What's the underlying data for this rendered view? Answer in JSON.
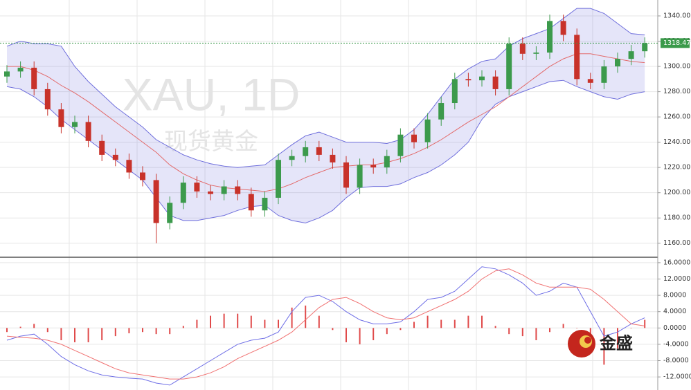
{
  "chart_data": [
    {
      "type": "candlestick",
      "watermark": "XAU, 1D",
      "watermark_subtitle": "现货黄金",
      "up_color": "#3c9a4c",
      "down_color": "#c8322a",
      "band_color": "#6e6edc",
      "middle_color": "#e36a6a",
      "open": [
        1292,
        1296,
        1299,
        1282,
        1266,
        1252,
        1256,
        1241,
        1230,
        1226,
        1216,
        1210,
        1176,
        1192,
        1208,
        1201,
        1199,
        1205,
        1199,
        1186,
        1196,
        1226,
        1229,
        1236,
        1230,
        1224,
        1204,
        1222,
        1220,
        1229,
        1246,
        1240,
        1258,
        1271,
        1290,
        1289,
        1292,
        1282,
        1318,
        1310,
        1311,
        1336,
        1325,
        1290,
        1287,
        1300,
        1306,
        1312
      ],
      "high": [
        1301,
        1304,
        1304,
        1287,
        1271,
        1261,
        1261,
        1246,
        1235,
        1231,
        1221,
        1215,
        1197,
        1213,
        1213,
        1206,
        1210,
        1210,
        1204,
        1201,
        1231,
        1234,
        1241,
        1241,
        1235,
        1229,
        1227,
        1227,
        1234,
        1251,
        1251,
        1263,
        1276,
        1295,
        1295,
        1297,
        1297,
        1323,
        1323,
        1316,
        1341,
        1341,
        1330,
        1295,
        1305,
        1311,
        1317,
        1323
      ],
      "low": [
        1287,
        1291,
        1277,
        1261,
        1247,
        1247,
        1236,
        1225,
        1221,
        1211,
        1205,
        1160,
        1171,
        1187,
        1196,
        1194,
        1194,
        1194,
        1181,
        1181,
        1191,
        1221,
        1224,
        1225,
        1219,
        1199,
        1199,
        1215,
        1215,
        1224,
        1235,
        1235,
        1253,
        1266,
        1284,
        1284,
        1277,
        1277,
        1305,
        1305,
        1306,
        1320,
        1285,
        1282,
        1282,
        1295,
        1301,
        1307
      ],
      "close": [
        1296,
        1299,
        1282,
        1266,
        1252,
        1256,
        1241,
        1230,
        1226,
        1216,
        1210,
        1176,
        1192,
        1208,
        1201,
        1199,
        1205,
        1199,
        1186,
        1196,
        1226,
        1229,
        1236,
        1230,
        1224,
        1204,
        1222,
        1220,
        1229,
        1246,
        1240,
        1258,
        1271,
        1290,
        1289,
        1292,
        1282,
        1318,
        1310,
        1311,
        1336,
        1325,
        1290,
        1287,
        1300,
        1306,
        1312,
        1318.47
      ],
      "upper": [
        1316,
        1320,
        1318,
        1318,
        1316,
        1300,
        1288,
        1278,
        1268,
        1260,
        1252,
        1242,
        1236,
        1230,
        1226,
        1223,
        1221,
        1220,
        1221,
        1222,
        1230,
        1238,
        1245,
        1248,
        1244,
        1240,
        1240,
        1240,
        1239,
        1242,
        1250,
        1262,
        1276,
        1290,
        1298,
        1304,
        1306,
        1316,
        1322,
        1326,
        1330,
        1338,
        1346,
        1346,
        1342,
        1334,
        1326,
        1325
      ],
      "middle": [
        1300,
        1300,
        1297,
        1292,
        1285,
        1279,
        1272,
        1264,
        1256,
        1248,
        1240,
        1232,
        1222,
        1215,
        1210,
        1206,
        1204,
        1203,
        1202,
        1201,
        1203,
        1207,
        1212,
        1216,
        1220,
        1221,
        1222,
        1222,
        1224,
        1227,
        1231,
        1236,
        1242,
        1249,
        1256,
        1262,
        1268,
        1276,
        1284,
        1292,
        1300,
        1306,
        1310,
        1310,
        1308,
        1306,
        1304,
        1303
      ],
      "lower": [
        1284,
        1282,
        1276,
        1268,
        1258,
        1250,
        1242,
        1234,
        1226,
        1218,
        1210,
        1196,
        1182,
        1178,
        1178,
        1180,
        1182,
        1186,
        1189,
        1190,
        1182,
        1178,
        1176,
        1180,
        1186,
        1196,
        1204,
        1205,
        1205,
        1207,
        1212,
        1216,
        1222,
        1230,
        1240,
        1258,
        1270,
        1276,
        1280,
        1284,
        1288,
        1289,
        1284,
        1280,
        1276,
        1274,
        1278,
        1280
      ],
      "last_price": 1318.47,
      "ylim": [
        1150,
        1352.6
      ],
      "yticks": [
        {
          "value": 1160,
          "label": "1160.00"
        },
        {
          "value": 1180,
          "label": "1180.00"
        },
        {
          "value": 1200,
          "label": "1200.00"
        },
        {
          "value": 1220,
          "label": "1220.00"
        },
        {
          "value": 1240,
          "label": "1240.00"
        },
        {
          "value": 1260,
          "label": "1260.00"
        },
        {
          "value": 1280,
          "label": "1280.00"
        },
        {
          "value": 1300,
          "label": "1300.00"
        },
        {
          "value": 1320,
          "label": "1320.00"
        },
        {
          "value": 1340,
          "label": "1340.00"
        }
      ],
      "grid": true
    },
    {
      "type": "macd",
      "logo": "金盛",
      "macd_color": "#6e6ee6",
      "signal_color": "#f07070",
      "hist_color": "#e04a4a",
      "macd": [
        -3,
        -2,
        -1.5,
        -4,
        -7,
        -9,
        -10.5,
        -11.5,
        -12,
        -12.3,
        -12.5,
        -13.5,
        -14,
        -12,
        -10,
        -8,
        -6,
        -4,
        -3,
        -2.5,
        -1,
        4,
        7.5,
        8,
        6.5,
        4,
        2,
        1,
        1,
        1.5,
        4,
        7,
        7.5,
        9,
        12,
        15,
        14.5,
        13,
        11,
        8,
        9,
        11,
        10,
        4,
        -2,
        -1,
        1,
        2.5
      ],
      "signal": [
        -2,
        -2.3,
        -2.5,
        -3,
        -4,
        -5.5,
        -7,
        -8.5,
        -10,
        -11,
        -11.5,
        -12,
        -12.5,
        -12.5,
        -12,
        -11,
        -9.5,
        -7.5,
        -6,
        -4.5,
        -3,
        -1,
        2,
        5,
        7,
        7.5,
        6,
        4,
        2.5,
        2,
        2.5,
        4,
        5.5,
        7,
        9,
        12,
        14,
        14.5,
        13,
        11,
        10,
        10,
        10,
        9.5,
        7,
        4,
        1,
        0.5
      ],
      "histogram": [
        -1,
        0.3,
        1,
        -1,
        -3,
        -3.5,
        -3.5,
        -3,
        -2,
        -1.3,
        -1,
        -1.5,
        -1.5,
        0.5,
        2,
        3,
        3.5,
        3.5,
        3,
        2,
        2,
        5,
        5.5,
        3,
        -0.5,
        -3.5,
        -4,
        -3,
        -1.5,
        -0.5,
        1.5,
        3,
        2,
        2,
        3,
        3,
        0.5,
        -1.5,
        -2,
        -3,
        -1,
        1,
        0,
        -5.5,
        -9,
        -5,
        0,
        2
      ],
      "ylim": [
        -15.2,
        17
      ],
      "yticks": [
        {
          "value": -12,
          "label": "-12.0000"
        },
        {
          "value": -8,
          "label": "-8.0000"
        },
        {
          "value": -4,
          "label": "-4.0000"
        },
        {
          "value": 0,
          "label": "0.0000"
        },
        {
          "value": 4,
          "label": "4.0000"
        },
        {
          "value": 8,
          "label": "8.0000"
        },
        {
          "value": 12,
          "label": "12.0000"
        },
        {
          "value": 16,
          "label": "16.0000"
        }
      ],
      "grid": true
    }
  ]
}
